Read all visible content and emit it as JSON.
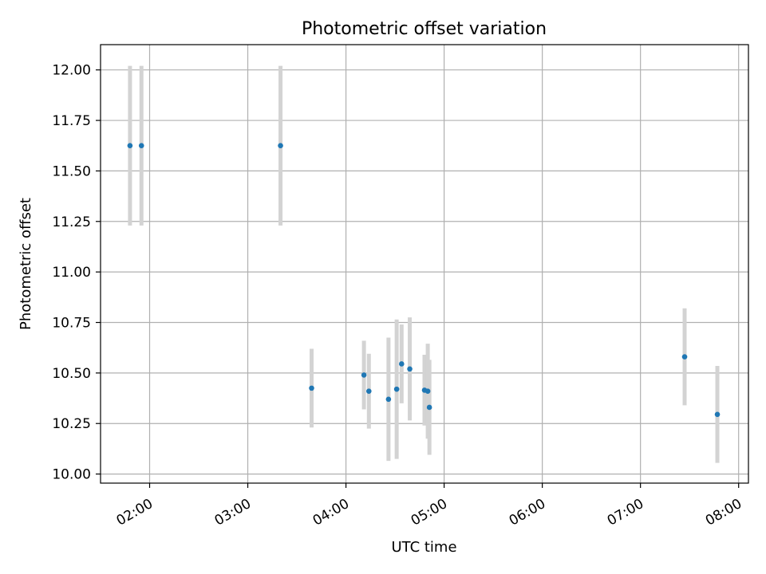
{
  "chart_data": {
    "type": "scatter",
    "title": "Photometric offset variation",
    "xlabel": "UTC time",
    "ylabel": "Photometric offset",
    "xlim": [
      "01:30",
      "08:06"
    ],
    "ylim": [
      9.955,
      12.125
    ],
    "grid": true,
    "x_ticks": [
      "02:00",
      "03:00",
      "04:00",
      "05:00",
      "06:00",
      "07:00",
      "08:00"
    ],
    "y_ticks": [
      "10.00",
      "10.25",
      "10.50",
      "10.75",
      "11.00",
      "11.25",
      "11.50",
      "11.75",
      "12.00"
    ],
    "colors": {
      "point": "#1f77b4",
      "errorbar": "#d3d3d3",
      "grid": "#b0b0b0"
    },
    "points": [
      {
        "x": "01:48",
        "y": 11.625,
        "err": 0.395
      },
      {
        "x": "01:55",
        "y": 11.625,
        "err": 0.395
      },
      {
        "x": "03:20",
        "y": 11.625,
        "err": 0.395
      },
      {
        "x": "03:39",
        "y": 10.425,
        "err": 0.195
      },
      {
        "x": "04:11",
        "y": 10.49,
        "err": 0.17
      },
      {
        "x": "04:14",
        "y": 10.41,
        "err": 0.185
      },
      {
        "x": "04:26",
        "y": 10.37,
        "err": 0.305
      },
      {
        "x": "04:31",
        "y": 10.42,
        "err": 0.345
      },
      {
        "x": "04:34",
        "y": 10.545,
        "err": 0.195
      },
      {
        "x": "04:39",
        "y": 10.52,
        "err": 0.255
      },
      {
        "x": "04:48",
        "y": 10.415,
        "err": 0.175
      },
      {
        "x": "04:50",
        "y": 10.41,
        "err": 0.235
      },
      {
        "x": "04:51",
        "y": 10.33,
        "err": 0.235
      },
      {
        "x": "07:27",
        "y": 10.58,
        "err": 0.24
      },
      {
        "x": "07:47",
        "y": 10.295,
        "err": 0.24
      }
    ]
  }
}
